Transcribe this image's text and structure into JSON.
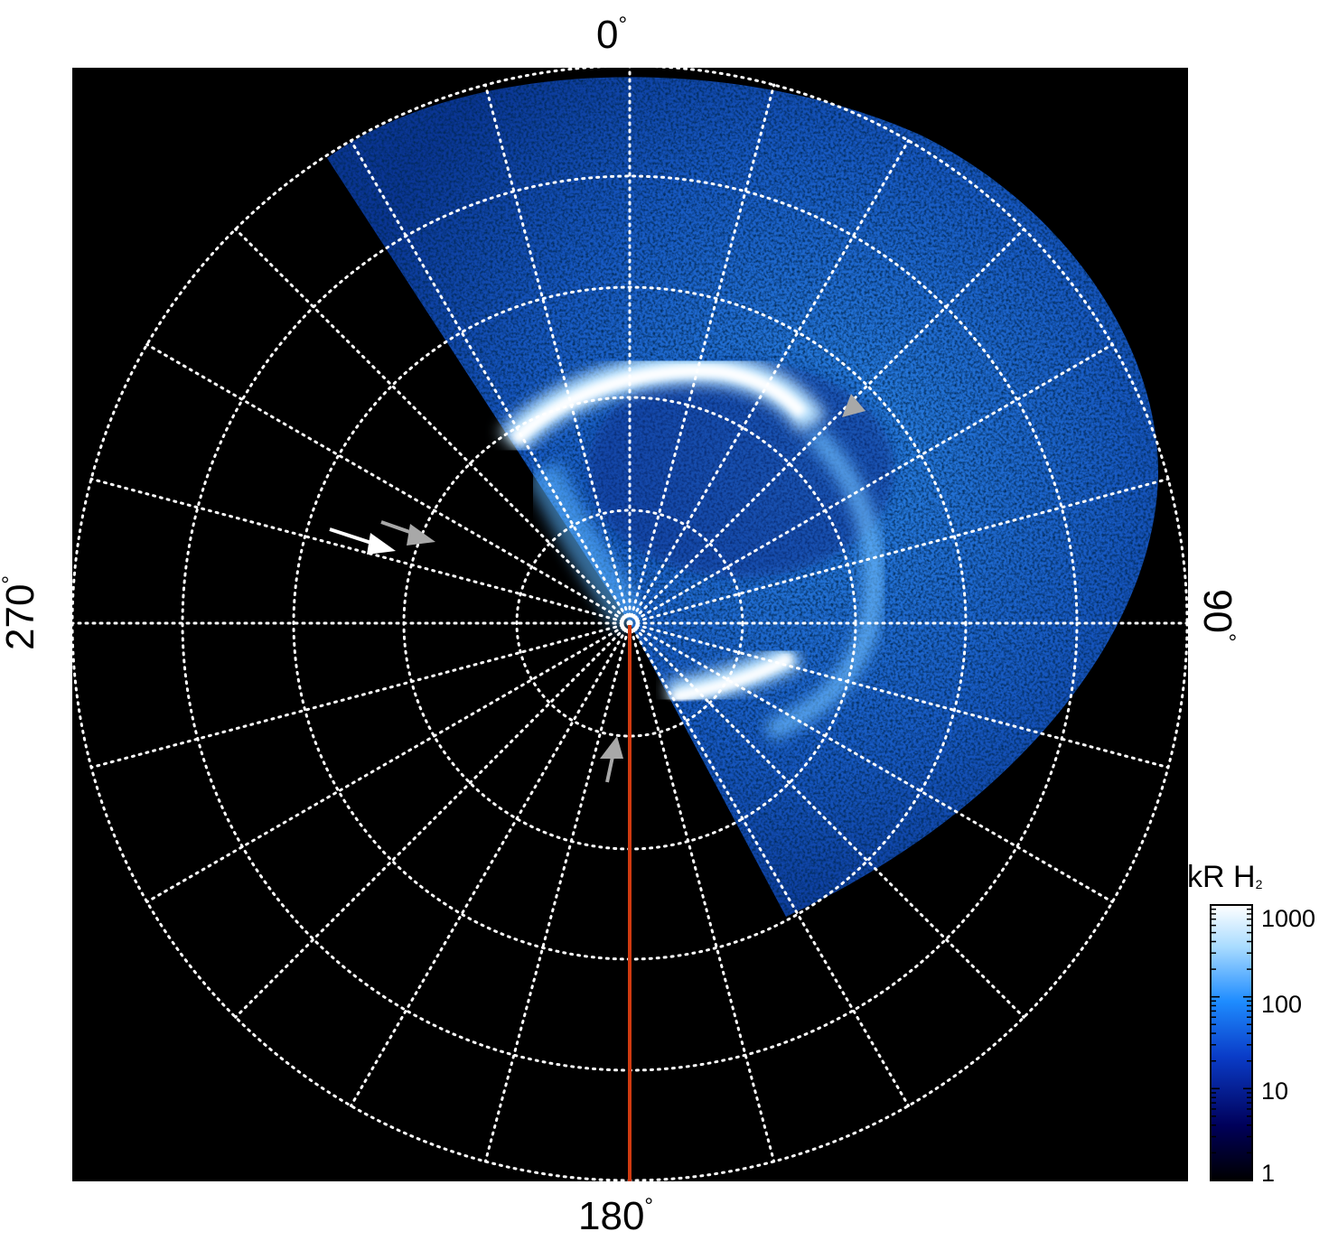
{
  "azimuth_labels": {
    "top": "0",
    "right": "90",
    "bottom": "180",
    "left": "270",
    "degree_symbol": "°"
  },
  "colorbar": {
    "title_main": "kR H",
    "title_sub": "2",
    "ticks": [
      "1000",
      "100",
      "10",
      "1"
    ],
    "scale": "log",
    "range": [
      1,
      1000
    ],
    "colors": [
      "#000000",
      "#00005a",
      "#0a3cc8",
      "#1e8cff",
      "#aadcff",
      "#ffffff"
    ]
  },
  "image": {
    "background": "#000000",
    "grid_color": "#ffffff",
    "grid_style": "dotted",
    "meridian_line_color": "#d03a10",
    "arrows": {
      "white": "#ffffff",
      "gray": "#a8a8a8"
    }
  }
}
